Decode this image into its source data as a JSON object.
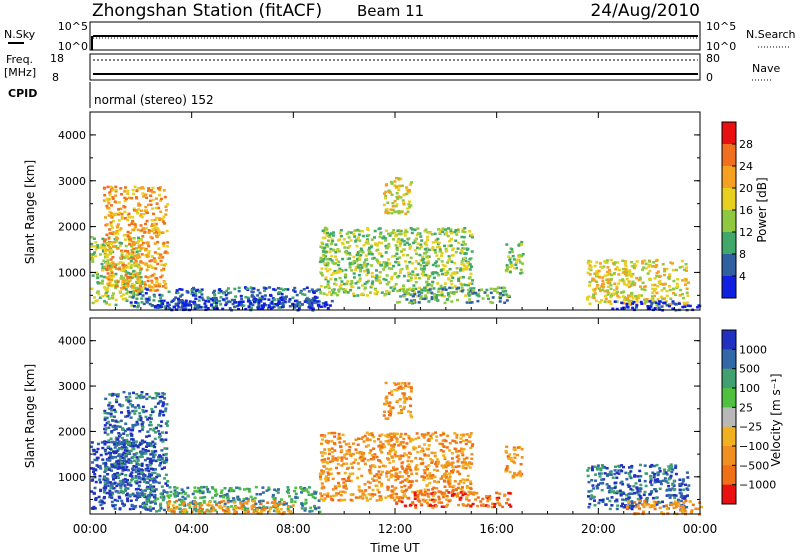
{
  "header": {
    "title": "Zhongshan Station (fitACF)",
    "beam": "Beam 11",
    "date": "24/Aug/2010"
  },
  "top_panels": {
    "nsky_label": "N.Sky",
    "nsky_ticks": [
      "10^5",
      "10^0"
    ],
    "nsearch_label": "N.Search",
    "nsearch_ticks": [
      "10^5",
      "10^0"
    ],
    "freq_label_1": "Freq.",
    "freq_label_2": "[MHz]",
    "freq_ticks": [
      "18",
      "8"
    ],
    "nave_label": "Nave",
    "nave_ticks": [
      "80",
      "0"
    ],
    "cpid_label": "CPID",
    "cpid_text": "normal (stereo) 152"
  },
  "chart_data": [
    {
      "type": "heatmap",
      "parameter": "power",
      "ylabel": "Slant Range [km]",
      "xlabel": "",
      "ylim": [
        180,
        4500
      ],
      "yticks": [
        "4000",
        "3000",
        "2000",
        "1000"
      ],
      "xlim": [
        0,
        24
      ],
      "colorbar_label": "Power [dB]",
      "colorbar_ticks": [
        "28",
        "24",
        "20",
        "16",
        "12",
        "8",
        "4"
      ],
      "colorbar_colors": [
        "#e81010",
        "#f07020",
        "#f5a020",
        "#e8d020",
        "#90c840",
        "#40a868",
        "#3060a0",
        "#1020e0"
      ],
      "echo_regions": [
        {
          "t0": 0.0,
          "t1": 2.0,
          "r0": 300,
          "r1": 1800,
          "level": 4
        },
        {
          "t0": 0.5,
          "t1": 3.0,
          "r0": 600,
          "r1": 2900,
          "level": 2
        },
        {
          "t0": 1.5,
          "t1": 9.0,
          "r0": 250,
          "r1": 700,
          "level": 6
        },
        {
          "t0": 2.5,
          "t1": 9.5,
          "r0": 200,
          "r1": 450,
          "level": 7
        },
        {
          "t0": 9.0,
          "t1": 15.0,
          "r0": 500,
          "r1": 2000,
          "level": 4
        },
        {
          "t0": 11.5,
          "t1": 12.6,
          "r0": 2300,
          "r1": 3100,
          "level": 3
        },
        {
          "t0": 12.0,
          "t1": 16.5,
          "r0": 350,
          "r1": 700,
          "level": 5
        },
        {
          "t0": 16.3,
          "t1": 17.0,
          "r0": 1000,
          "r1": 1700,
          "level": 4
        },
        {
          "t0": 19.5,
          "t1": 23.5,
          "r0": 300,
          "r1": 1300,
          "level": 3
        },
        {
          "t0": 20.5,
          "t1": 24.0,
          "r0": 200,
          "r1": 400,
          "level": 7
        }
      ]
    },
    {
      "type": "heatmap",
      "parameter": "velocity",
      "ylabel": "Slant Range [km]",
      "xlabel": "Time UT",
      "ylim": [
        180,
        4500
      ],
      "yticks": [
        "4000",
        "3000",
        "2000",
        "1000"
      ],
      "xlim": [
        0,
        24
      ],
      "xticks": [
        "00:00",
        "04:00",
        "08:00",
        "12:00",
        "16:00",
        "20:00",
        "00:00"
      ],
      "colorbar_label": "Velocity [m s⁻¹]",
      "colorbar_ticks": [
        "1000",
        "500",
        "100",
        "25",
        "−25",
        "−100",
        "−500",
        "−1000"
      ],
      "colorbar_colors": [
        "#2030c0",
        "#3068a8",
        "#40a070",
        "#50c040",
        "#b8b8b8",
        "#f0b020",
        "#f09020",
        "#f07018",
        "#e81010"
      ],
      "echo_regions": [
        {
          "t0": 0.0,
          "t1": 2.5,
          "r0": 300,
          "r1": 1800,
          "level": 0
        },
        {
          "t0": 0.5,
          "t1": 3.0,
          "r0": 600,
          "r1": 2900,
          "level": 1
        },
        {
          "t0": 2.0,
          "t1": 9.0,
          "r0": 250,
          "r1": 800,
          "level": 2
        },
        {
          "t0": 3.0,
          "t1": 8.0,
          "r0": 200,
          "r1": 500,
          "level": 6
        },
        {
          "t0": 9.0,
          "t1": 15.0,
          "r0": 500,
          "r1": 2000,
          "level": 6
        },
        {
          "t0": 11.5,
          "t1": 12.6,
          "r0": 2300,
          "r1": 3100,
          "level": 6
        },
        {
          "t0": 12.0,
          "t1": 16.5,
          "r0": 350,
          "r1": 700,
          "level": 7
        },
        {
          "t0": 16.3,
          "t1": 17.0,
          "r0": 1000,
          "r1": 1700,
          "level": 6
        },
        {
          "t0": 19.5,
          "t1": 23.5,
          "r0": 300,
          "r1": 1300,
          "level": 1
        },
        {
          "t0": 21.0,
          "t1": 24.0,
          "r0": 200,
          "r1": 500,
          "level": 6
        }
      ]
    }
  ]
}
